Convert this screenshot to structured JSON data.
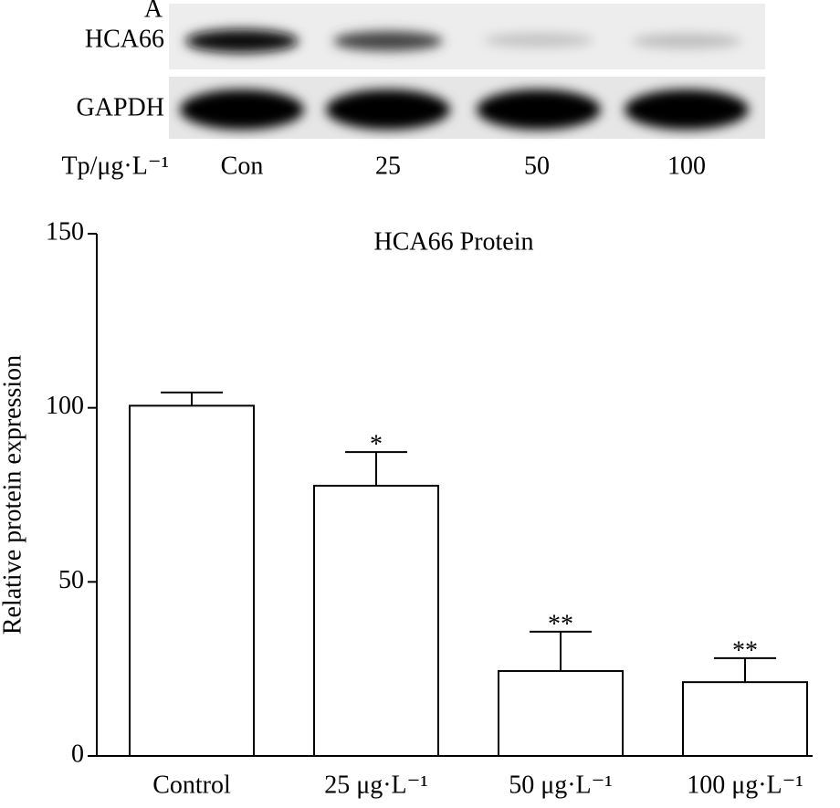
{
  "blot": {
    "panel": "A",
    "rows": [
      "HCA66",
      "GAPDH"
    ],
    "treatment_label": "Tp/μg·L⁻¹",
    "lanes": [
      "Con",
      "25",
      "50",
      "100"
    ]
  },
  "chart_data": {
    "type": "bar",
    "title": "HCA66 Protein",
    "y_label": "Relative protein expression",
    "categories": [
      "Control",
      "25 μg·L⁻¹",
      "50 μg·L⁻¹",
      "100 μg·L⁻¹"
    ],
    "values": [
      100.6,
      77.6,
      24.4,
      21.2
    ],
    "errors": [
      3.8,
      9.7,
      11.3,
      6.9
    ],
    "significance": [
      null,
      "*",
      "**",
      "**"
    ],
    "color": "#ffffff",
    "edge_color": "#000000",
    "ylim": [
      0,
      150
    ],
    "yticks": [
      0,
      50,
      100,
      150
    ],
    "grid": false
  }
}
